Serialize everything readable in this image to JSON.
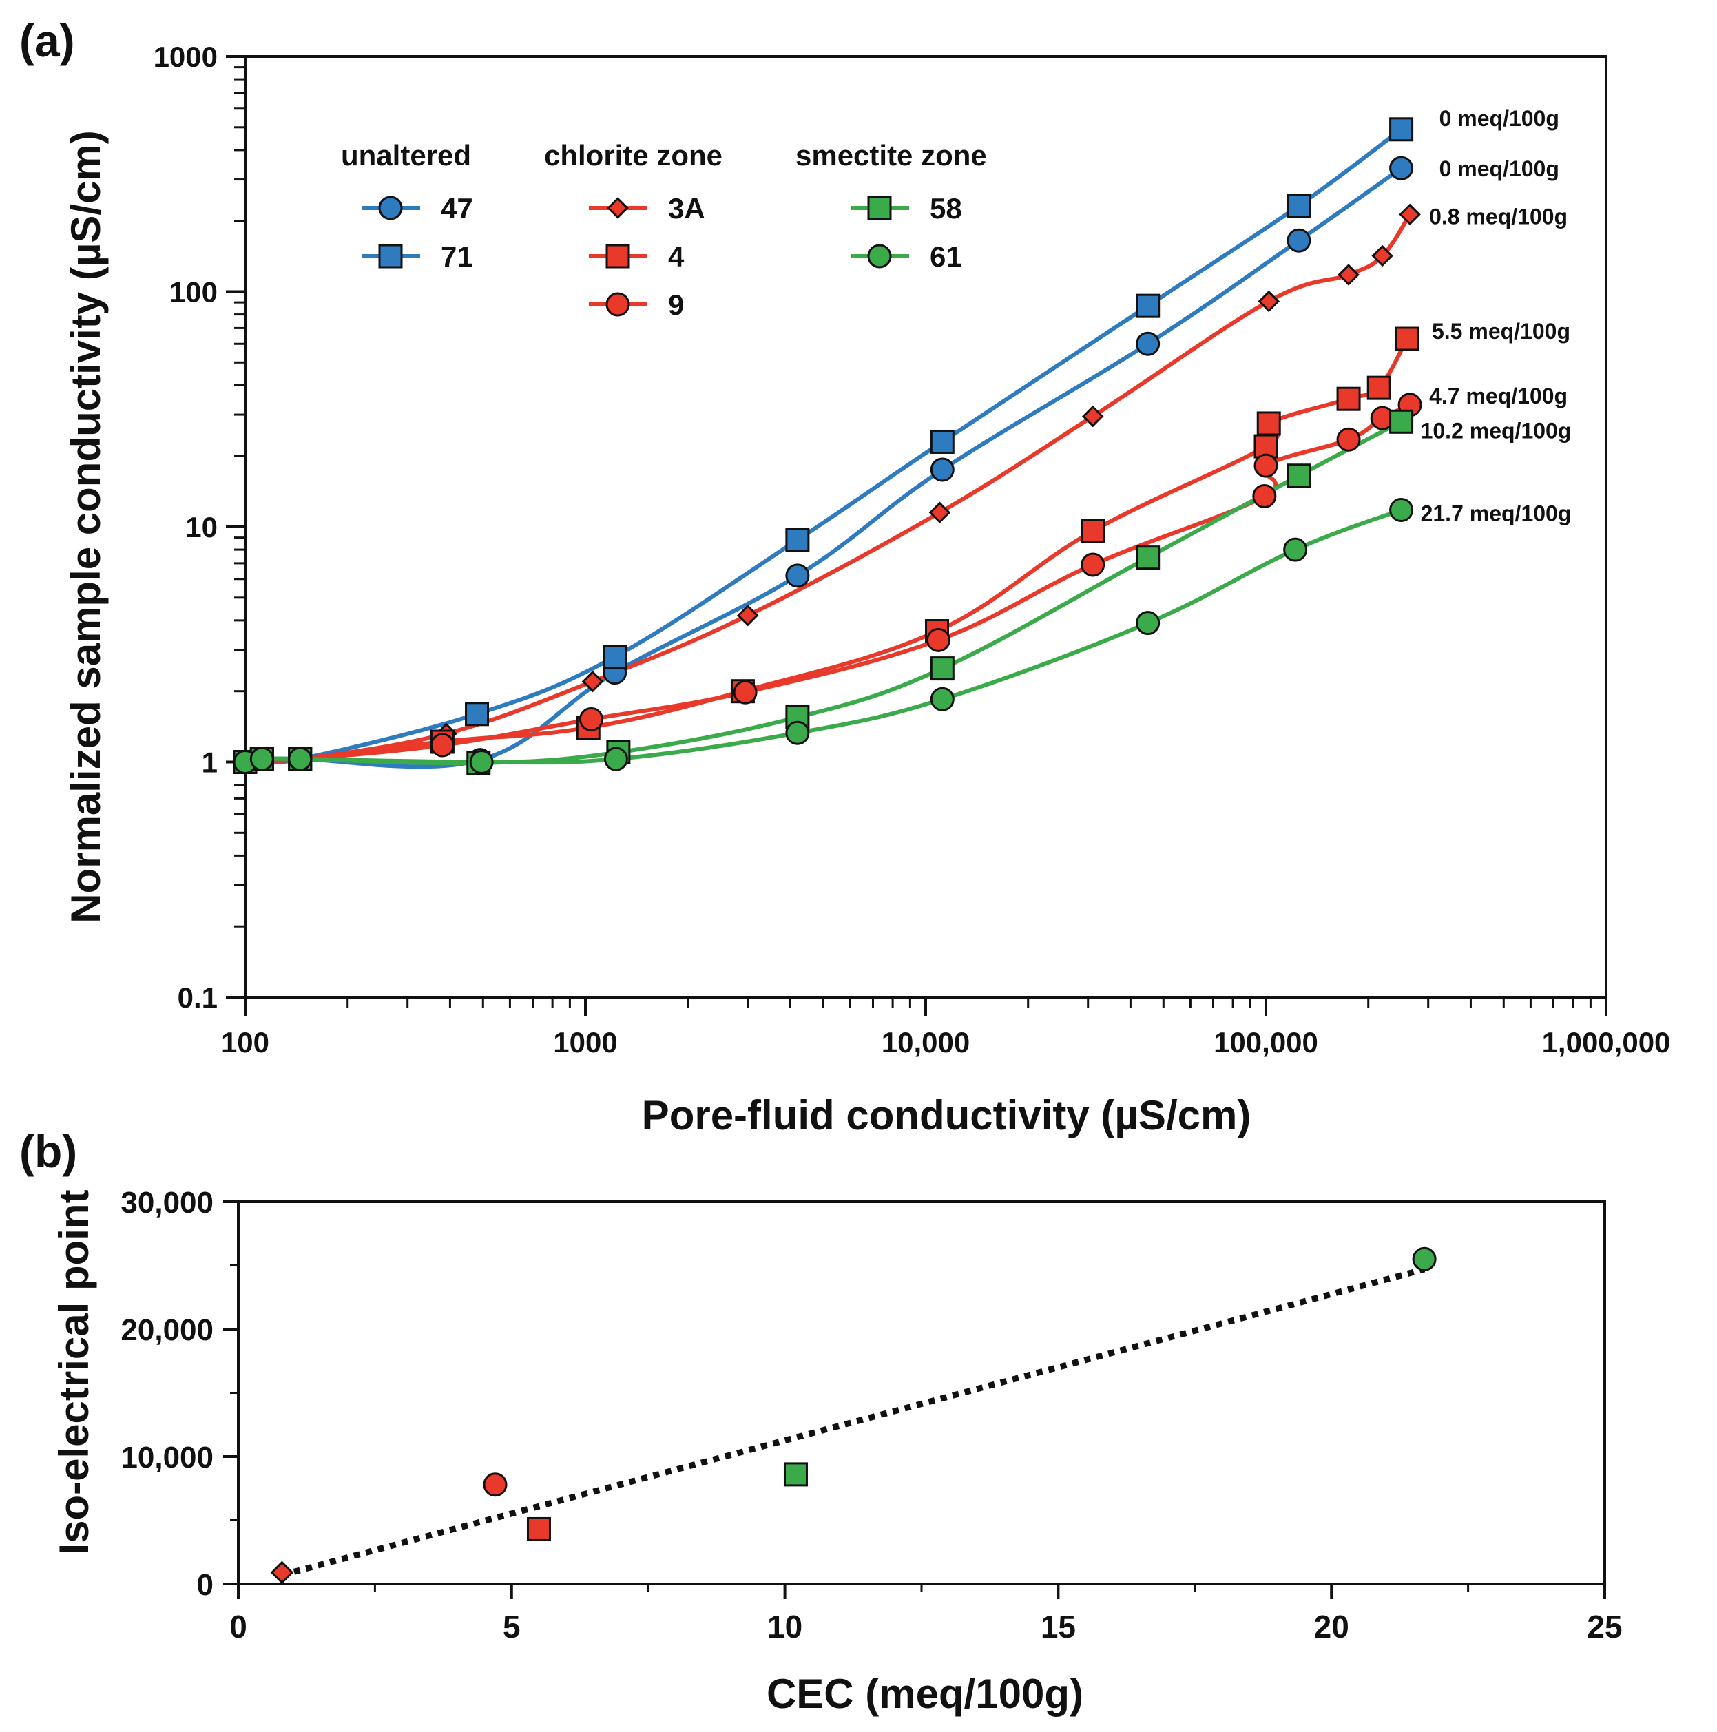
{
  "chart_data": [
    {
      "panel": "(a)",
      "type": "line",
      "xscale": "log",
      "yscale": "log",
      "xlim": [
        100,
        1000000
      ],
      "ylim": [
        0.1,
        1000
      ],
      "xlabel": "Pore-fluid conductivity (µS/cm)",
      "ylabel": "Normalized sample conductivity (µS/cm)",
      "x_ticks": [
        {
          "v": 100,
          "t": "100"
        },
        {
          "v": 1000,
          "t": "1000"
        },
        {
          "v": 10000,
          "t": "10,000"
        },
        {
          "v": 100000,
          "t": "100,000"
        },
        {
          "v": 1000000,
          "t": "1,000,000"
        }
      ],
      "y_ticks": [
        {
          "v": 0.1,
          "t": "0.1"
        },
        {
          "v": 1,
          "t": "1"
        },
        {
          "v": 10,
          "t": "10"
        },
        {
          "v": 100,
          "t": "100"
        },
        {
          "v": 1000,
          "t": "1000"
        }
      ],
      "legend": {
        "placement": "top-left",
        "groups": [
          {
            "title": "unaltered",
            "entries": [
              "47",
              "71"
            ]
          },
          {
            "title": "chlorite zone",
            "entries": [
              "3A",
              "4",
              "9"
            ]
          },
          {
            "title": "smectite zone",
            "entries": [
              "58",
              "61"
            ]
          }
        ]
      },
      "series": [
        {
          "name": "47",
          "group": "unaltered",
          "color": "#2e7bbf",
          "marker": "circle",
          "x": [
            100,
            112,
            145,
            490,
            1220,
            4200,
            11200,
            45000,
            125000,
            250000
          ],
          "y": [
            1.0,
            1.03,
            1.03,
            1.02,
            2.4,
            6.2,
            17.5,
            60,
            165,
            335
          ],
          "cec_label": "0 meq/100g"
        },
        {
          "name": "71",
          "group": "unaltered",
          "color": "#2e7bbf",
          "marker": "square",
          "x": [
            100,
            112,
            145,
            480,
            1220,
            4200,
            11200,
            45000,
            125000,
            250000
          ],
          "y": [
            1.0,
            1.03,
            1.03,
            1.6,
            2.8,
            8.8,
            23,
            87,
            232,
            490
          ],
          "cec_label": "0 meq/100g"
        },
        {
          "name": "3A",
          "group": "chlorite zone",
          "color": "#e8392b",
          "marker": "diamond",
          "x": [
            100,
            112,
            145,
            390,
            1050,
            3000,
            11000,
            31000,
            102000,
            175000,
            220000,
            265000
          ],
          "y": [
            1.0,
            1.03,
            1.03,
            1.32,
            2.2,
            4.2,
            11.5,
            29.5,
            91,
            118,
            142,
            213
          ],
          "cec_label": "0.8 meq/100g"
        },
        {
          "name": "4",
          "group": "chlorite zone",
          "color": "#e8392b",
          "marker": "square",
          "x": [
            100,
            112,
            145,
            380,
            1020,
            2900,
            10800,
            31000,
            100000,
            102000,
            175000,
            215000,
            260000
          ],
          "y": [
            1.0,
            1.03,
            1.03,
            1.22,
            1.4,
            2.0,
            3.6,
            9.6,
            22,
            27.5,
            35,
            39,
            63
          ],
          "cec_label": "5.5 meq/100g"
        },
        {
          "name": "9",
          "group": "chlorite zone",
          "color": "#e8392b",
          "marker": "circle",
          "x": [
            100,
            112,
            145,
            380,
            1040,
            2950,
            10900,
            31000,
            99000,
            100000,
            175000,
            220000,
            265000
          ],
          "y": [
            1.0,
            1.03,
            1.03,
            1.18,
            1.52,
            1.98,
            3.3,
            6.9,
            13.5,
            18.2,
            23.5,
            29,
            33
          ],
          "cec_label": "4.7 meq/100g"
        },
        {
          "name": "58",
          "group": "smectite zone",
          "color": "#3aaa4a",
          "marker": "square",
          "x": [
            100,
            112,
            145,
            485,
            1250,
            4200,
            11200,
            45000,
            125000,
            250000
          ],
          "y": [
            1.0,
            1.03,
            1.03,
            0.99,
            1.1,
            1.55,
            2.5,
            7.4,
            16.5,
            28
          ],
          "cec_label": "10.2 meq/100g"
        },
        {
          "name": "61",
          "group": "smectite zone",
          "color": "#3aaa4a",
          "marker": "circle",
          "x": [
            100,
            112,
            145,
            495,
            1230,
            4200,
            11200,
            45000,
            122000,
            250000
          ],
          "y": [
            1.0,
            1.03,
            1.03,
            1.0,
            1.03,
            1.33,
            1.85,
            3.9,
            8.0,
            11.8
          ],
          "cec_label": "21.7 meq/100g"
        }
      ]
    },
    {
      "panel": "(b)",
      "type": "scatter",
      "xlim": [
        0,
        25
      ],
      "ylim": [
        0,
        30000
      ],
      "xlabel": "CEC (meq/100g)",
      "ylabel": "Iso-electrical point",
      "x_ticks": [
        {
          "v": 0,
          "t": "0"
        },
        {
          "v": 5,
          "t": "5"
        },
        {
          "v": 10,
          "t": "10"
        },
        {
          "v": 15,
          "t": "15"
        },
        {
          "v": 20,
          "t": "20"
        },
        {
          "v": 25,
          "t": "25"
        }
      ],
      "y_ticks": [
        {
          "v": 0,
          "t": "0"
        },
        {
          "v": 10000,
          "t": "10,000"
        },
        {
          "v": 20000,
          "t": "20,000"
        },
        {
          "v": 30000,
          "t": "30,000"
        }
      ],
      "points": [
        {
          "sample": "3A",
          "x": 0.8,
          "y": 900,
          "color": "#e8392b",
          "marker": "diamond"
        },
        {
          "sample": "9",
          "x": 4.7,
          "y": 7800,
          "color": "#e8392b",
          "marker": "circle"
        },
        {
          "sample": "4",
          "x": 5.5,
          "y": 4300,
          "color": "#e8392b",
          "marker": "square"
        },
        {
          "sample": "58",
          "x": 10.2,
          "y": 8600,
          "color": "#3aaa4a",
          "marker": "square"
        },
        {
          "sample": "61",
          "x": 21.7,
          "y": 25500,
          "color": "#3aaa4a",
          "marker": "circle"
        }
      ],
      "trendline": {
        "style": "dotted",
        "x": [
          0.8,
          21.7
        ],
        "y": [
          700,
          24700
        ]
      }
    }
  ]
}
